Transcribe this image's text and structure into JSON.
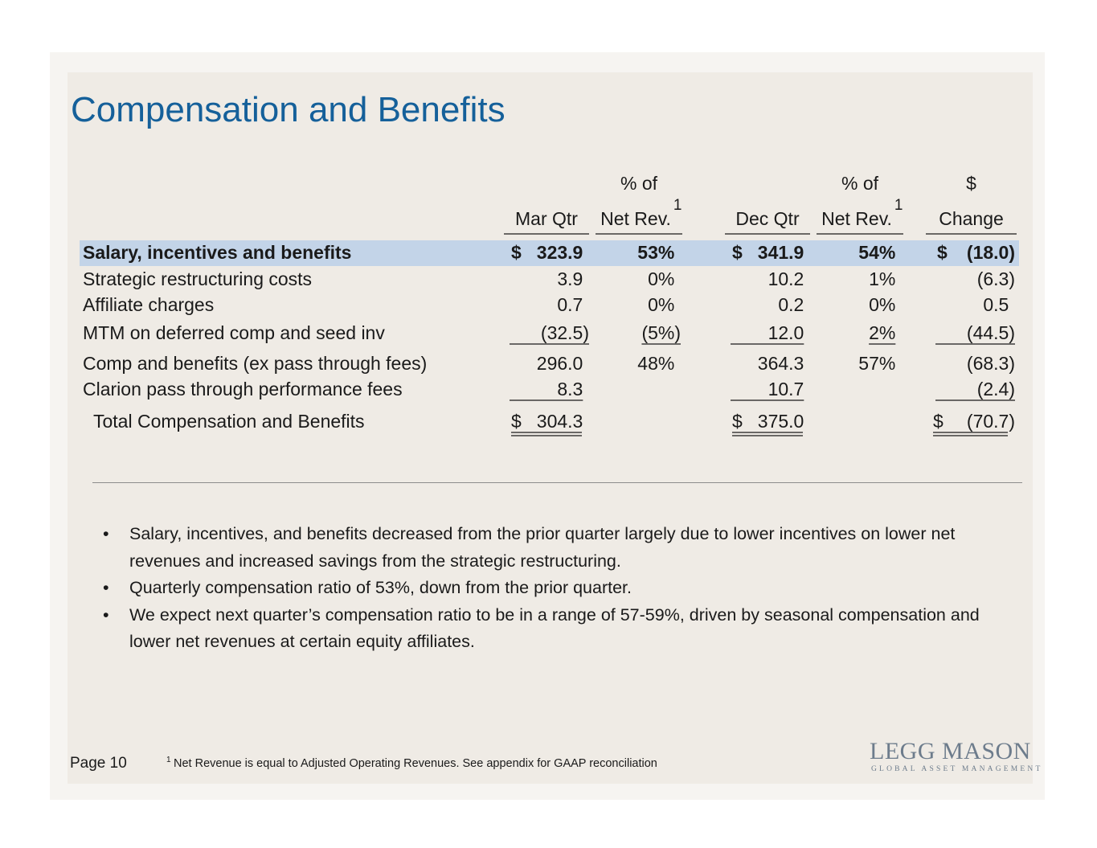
{
  "title": "Compensation and Benefits",
  "table": {
    "header": {
      "top": [
        "% of",
        "% of",
        "$"
      ],
      "columns": [
        "Mar Qtr",
        "Net Rev.",
        "Dec Qtr",
        "Net Rev.",
        "Change"
      ],
      "footnote_marks": [
        "1",
        "1"
      ]
    },
    "rows": [
      {
        "label": "Salary, incentives and benefits",
        "cells": [
          {
            "currency": "$",
            "value": "323.9"
          },
          "53%",
          {
            "currency": "$",
            "value": "341.9"
          },
          "54%",
          {
            "currency": "$",
            "value": "(18.0)"
          }
        ]
      },
      {
        "label": "Strategic restructuring costs",
        "cells": [
          "3.9",
          "0%",
          "10.2",
          "1%",
          "(6.3)"
        ]
      },
      {
        "label": "Affiliate charges",
        "cells": [
          "0.7",
          "0%",
          "0.2",
          "0%",
          "0.5"
        ]
      },
      {
        "label": "MTM on deferred comp and seed inv",
        "cells": [
          "(32.5)",
          "(5%)",
          "12.0",
          "2%",
          "(44.5)"
        ]
      },
      {
        "label": "Comp and benefits (ex pass through fees)",
        "cells": [
          "296.0",
          "48%",
          "364.3",
          "57%",
          "(68.3)"
        ]
      },
      {
        "label": "Clarion pass through performance fees",
        "cells": [
          "8.3",
          null,
          "10.7",
          null,
          "(2.4)"
        ]
      },
      {
        "label": "Total Compensation and Benefits",
        "cells": [
          {
            "currency": "$",
            "value": "304.3"
          },
          null,
          {
            "currency": "$",
            "value": "375.0"
          },
          null,
          {
            "currency": "$",
            "value": "(70.7)"
          }
        ]
      }
    ]
  },
  "bullets": [
    "Salary, incentives, and benefits decreased from the prior quarter largely due to lower incentives on lower net revenues and increased savings from the strategic restructuring.",
    "Quarterly compensation ratio of 53%, down from the prior quarter.",
    "We expect next quarter’s compensation ratio to be in a range of 57-59%, driven by seasonal compensation and lower net revenues at certain equity affiliates."
  ],
  "footer": {
    "page": "Page 10",
    "footnote_mark": "1",
    "footnote": "Net Revenue is equal to Adjusted Operating Revenues. See appendix for GAAP reconciliation"
  },
  "logo": {
    "name": "LEGG MASON",
    "tagline": "GLOBAL ASSET MANAGEMENT"
  }
}
